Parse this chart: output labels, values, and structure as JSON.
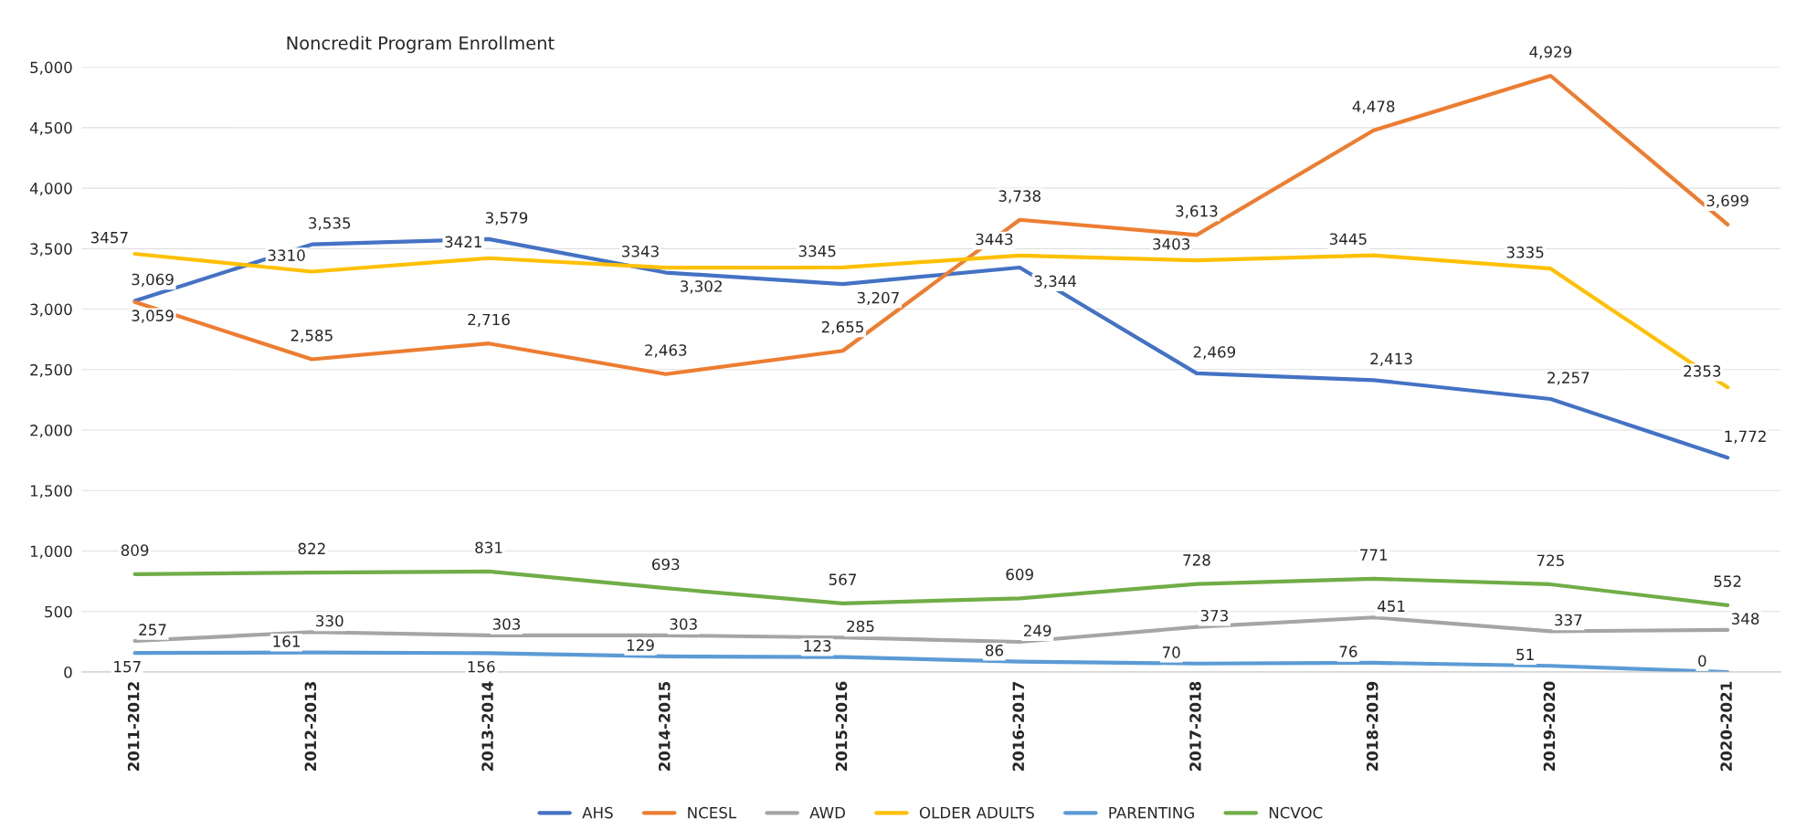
{
  "chart_data": {
    "type": "line",
    "title": "Noncredit Program Enrollment",
    "categories": [
      "2011-2012",
      "2012-2013",
      "2013-2014",
      "2014-2015",
      "2015-2016",
      "2016-2017",
      "2017-2018",
      "2018-2019",
      "2019-2020",
      "2020-2021"
    ],
    "series": [
      {
        "name": "AHS",
        "color": "#4472c4",
        "values": [
          3069,
          3535,
          3579,
          3302,
          3207,
          3344,
          2469,
          2413,
          2257,
          1772
        ],
        "value_labels": [
          "3,069",
          "3,535",
          "3,579",
          "3,302",
          "3,207",
          "3,344",
          "2,469",
          "2,413",
          "2,257",
          "1,772"
        ]
      },
      {
        "name": "NCESL",
        "color": "#ed7d31",
        "values": [
          3059,
          2585,
          2716,
          2463,
          2655,
          3738,
          3613,
          4478,
          4929,
          3699
        ],
        "value_labels": [
          "3,059",
          "2,585",
          "2,716",
          "2,463",
          "2,655",
          "3,738",
          "3,613",
          "4,478",
          "4,929",
          "3,699"
        ]
      },
      {
        "name": "AWD",
        "color": "#a5a5a5",
        "values": [
          257,
          330,
          303,
          303,
          285,
          249,
          373,
          451,
          337,
          348
        ],
        "value_labels": [
          "257",
          "330",
          "303",
          "303",
          "285",
          "249",
          "373",
          "451",
          "337",
          "348"
        ]
      },
      {
        "name": "OLDER ADULTS",
        "color": "#ffc000",
        "values": [
          3457,
          3310,
          3421,
          3343,
          3345,
          3443,
          3403,
          3445,
          3335,
          2353
        ],
        "value_labels": [
          "3457",
          "3310",
          "3421",
          "3343",
          "3345",
          "3443",
          "3403",
          "3445",
          "3335",
          "2353"
        ]
      },
      {
        "name": "PARENTING",
        "color": "#5b9bd5",
        "values": [
          157,
          161,
          156,
          129,
          123,
          86,
          70,
          76,
          51,
          0
        ],
        "value_labels": [
          "157",
          "161",
          "156",
          "129",
          "123",
          "86",
          "70",
          "76",
          "51",
          "0"
        ]
      },
      {
        "name": "NCVOC",
        "color": "#70ad47",
        "values": [
          809,
          822,
          831,
          693,
          567,
          609,
          728,
          771,
          725,
          552
        ],
        "value_labels": [
          "809",
          "822",
          "831",
          "693",
          "567",
          "609",
          "728",
          "771",
          "725",
          "552"
        ]
      }
    ],
    "ylim": [
      0,
      5000
    ],
    "yticks": [
      {
        "value": 0,
        "label": "0"
      },
      {
        "value": 500,
        "label": "500"
      },
      {
        "value": 1000,
        "label": "1,000"
      },
      {
        "value": 1500,
        "label": "1,500"
      },
      {
        "value": 2000,
        "label": "2,000"
      },
      {
        "value": 2500,
        "label": "2,500"
      },
      {
        "value": 3000,
        "label": "3,000"
      },
      {
        "value": 3500,
        "label": "3,500"
      },
      {
        "value": 4000,
        "label": "4,000"
      },
      {
        "value": 4500,
        "label": "4,500"
      },
      {
        "value": 5000,
        "label": "5,000"
      }
    ],
    "grid": "y",
    "legend": "bottom",
    "marker": "none",
    "line_style": "solid"
  }
}
